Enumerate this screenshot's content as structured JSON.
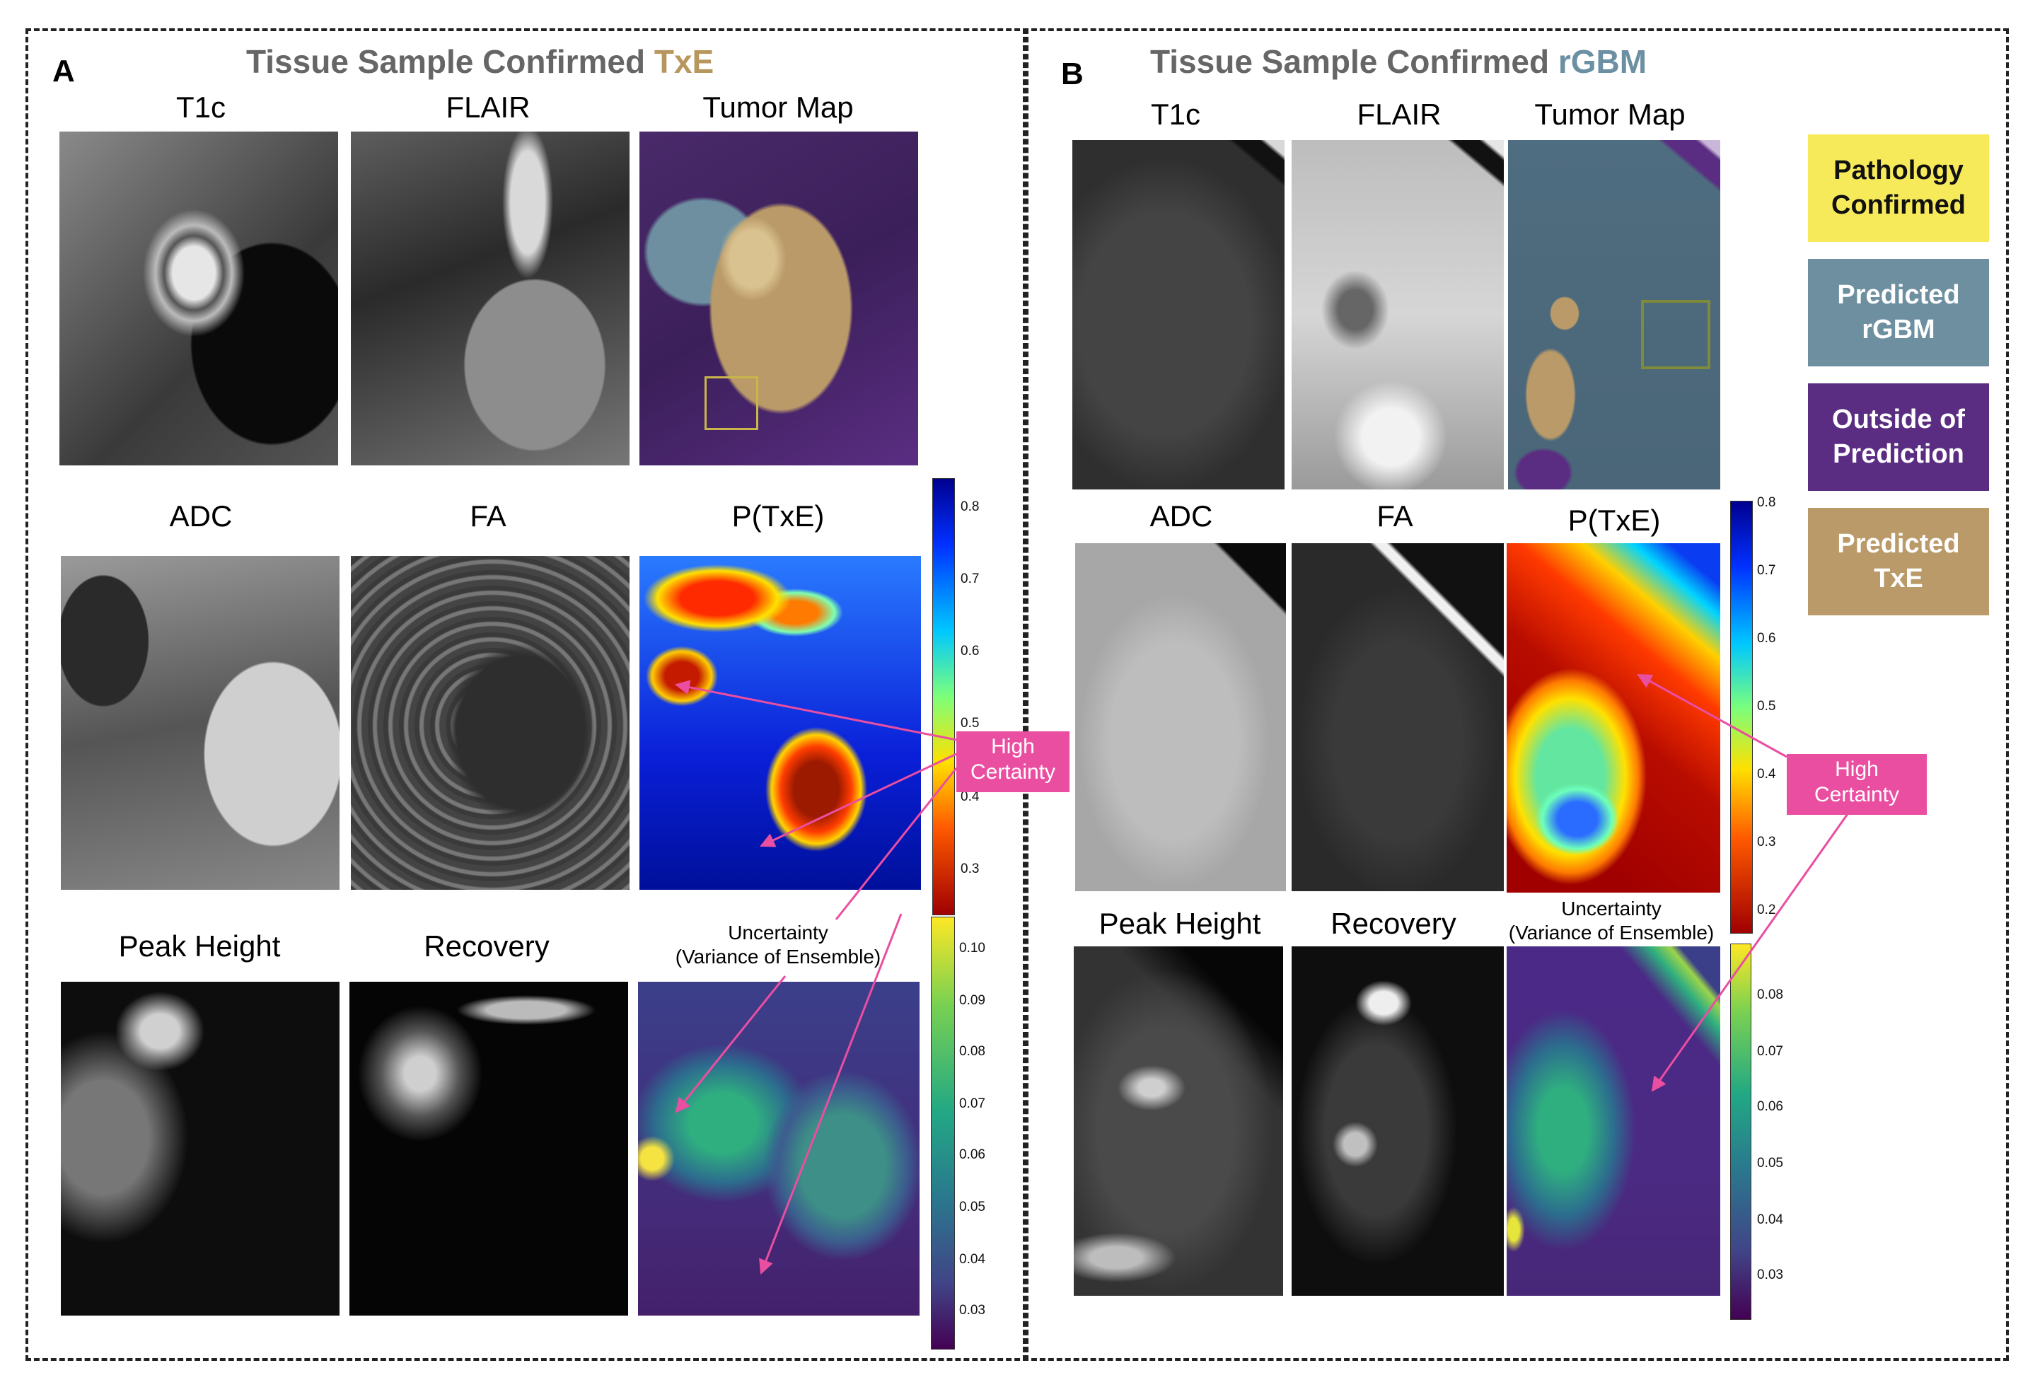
{
  "panel_a": {
    "letter": "A",
    "title_prefix": "Tissue Sample Confirmed ",
    "title_highlight": "TxE",
    "labels": {
      "t1c": "T1c",
      "flair": "FLAIR",
      "tumor_map": "Tumor Map",
      "adc": "ADC",
      "fa": "FA",
      "ptxe": "P(TxE)",
      "peak_height": "Peak Height",
      "recovery": "Recovery",
      "uncertainty_line1": "Uncertainty",
      "uncertainty_line2": "(Variance of Ensemble)"
    },
    "ptxe_ticks": [
      "0.8",
      "0.7",
      "0.6",
      "0.5",
      "0.4",
      "0.3"
    ],
    "unc_ticks": [
      "0.10",
      "0.09",
      "0.08",
      "0.07",
      "0.06",
      "0.05",
      "0.04",
      "0.03"
    ],
    "badge_line1": "High",
    "badge_line2": "Certainty"
  },
  "panel_b": {
    "letter": "B",
    "title_prefix": "Tissue Sample Confirmed ",
    "title_highlight": "rGBM",
    "labels": {
      "t1c": "T1c",
      "flair": "FLAIR",
      "tumor_map": "Tumor Map",
      "adc": "ADC",
      "fa": "FA",
      "ptxe": "P(TxE)",
      "peak_height": "Peak Height",
      "recovery": "Recovery",
      "uncertainty_line1": "Uncertainty",
      "uncertainty_line2": "(Variance of Ensemble)"
    },
    "ptxe_ticks": [
      "0.8",
      "0.7",
      "0.6",
      "0.5",
      "0.4",
      "0.3",
      "0.2"
    ],
    "unc_ticks": [
      "0.08",
      "0.07",
      "0.06",
      "0.05",
      "0.04",
      "0.03"
    ],
    "badge_line1": "High",
    "badge_line2": "Certainty"
  },
  "legend": [
    {
      "line1": "Pathology",
      "line2": "Confirmed",
      "color": "#f7ea5a",
      "text_color": "#111111"
    },
    {
      "line1": "Predicted",
      "line2": "rGBM",
      "color": "#6d8fa0",
      "text_color": "#ffffff"
    },
    {
      "line1": "Outside of",
      "line2": "Prediction",
      "color": "#5a2d82",
      "text_color": "#ffffff"
    },
    {
      "line1": "Predicted",
      "line2": "TxE",
      "color": "#b99a68",
      "text_color": "#ffffff"
    }
  ],
  "colors": {
    "txe_highlight": "#b8975e",
    "rgbm_highlight": "#6b8fa3",
    "arrow": "#e94ea1"
  }
}
